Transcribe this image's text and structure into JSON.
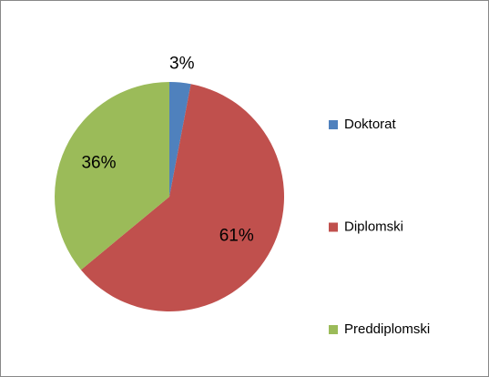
{
  "chart_data": {
    "type": "pie",
    "categories": [
      "Doktorat",
      "Diplomski",
      "Preddiplomski"
    ],
    "values": [
      3,
      61,
      36
    ],
    "value_labels": [
      "3%",
      "61%",
      "36%"
    ],
    "colors": [
      "#4f81bd",
      "#c0504d",
      "#9bbb59"
    ],
    "legend": "right"
  }
}
